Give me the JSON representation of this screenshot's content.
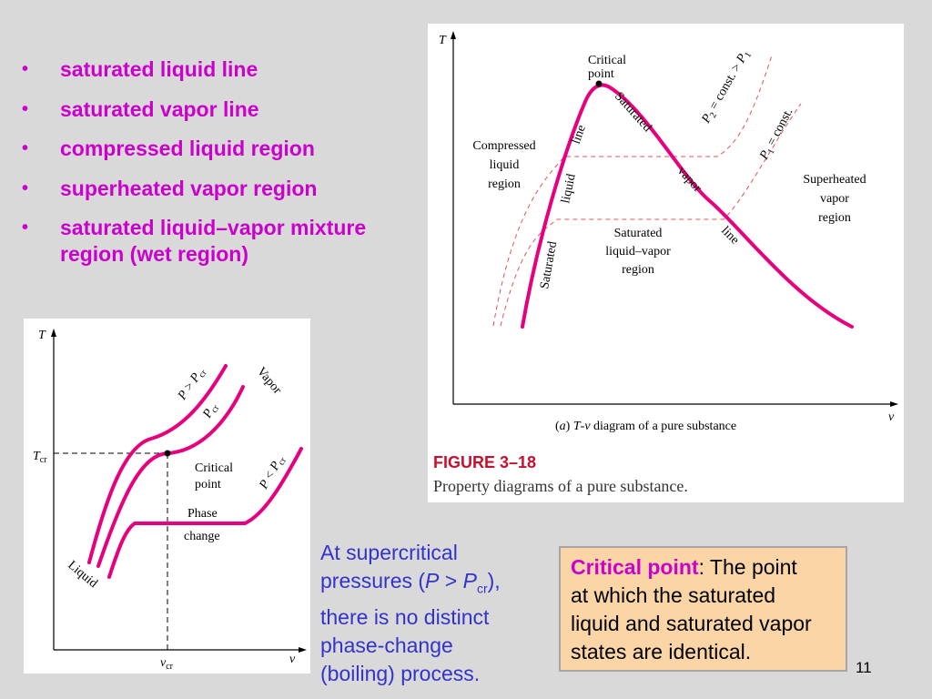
{
  "bullets": [
    {
      "text": "saturated liquid line"
    },
    {
      "text": "saturated vapor line"
    },
    {
      "text": "compressed liquid region"
    },
    {
      "text": "superheated vapor region"
    },
    {
      "text": "saturated liquid–vapor mixture region (wet region)"
    }
  ],
  "bullet_marker": "•",
  "figure_right": {
    "axis_t": "T",
    "axis_v": "v",
    "critical_point": [
      "Critical",
      "point"
    ],
    "p2_label": [
      "P",
      "2",
      " = const. > ",
      "P",
      "1"
    ],
    "p1_label": [
      "P",
      "1",
      " = const."
    ],
    "compressed_region": [
      "Compressed",
      "liquid",
      "region"
    ],
    "superheated_region": [
      "Superheated",
      "vapor",
      "region"
    ],
    "saturated_region": [
      "Saturated",
      "liquid–vapor",
      "region"
    ],
    "sat_liquid_line": [
      "Saturated",
      "liquid",
      "line"
    ],
    "sat_vapor_line": [
      "Saturated",
      "vapor",
      "line"
    ],
    "caption_a": [
      "(",
      "a",
      ") ",
      "T",
      "-",
      "v",
      " diagram of a pure substance"
    ],
    "figure_number": "FIGURE 3–18",
    "figure_caption": "Property diagrams of a pure substance."
  },
  "figure_left": {
    "axis_t": "T",
    "axis_v": "v",
    "t_cr": [
      "T",
      "cr"
    ],
    "v_cr": [
      "v",
      "cr"
    ],
    "critical_point": [
      "Critical",
      "point"
    ],
    "phase_change": [
      "Phase",
      "change"
    ],
    "liquid": "Liquid",
    "vapor": "Vapor",
    "p_gt_pcr": [
      "P",
      " > ",
      "P",
      "cr"
    ],
    "p_cr": [
      "P",
      "cr"
    ],
    "p_lt_pcr": [
      "P",
      " < ",
      "P",
      "cr"
    ]
  },
  "supercritical_note": {
    "line1": "At supercritical",
    "line2_pre": "pressures (",
    "line2_p": "P",
    "line2_gt": " > ",
    "line2_p2": "P",
    "line2_sub": "cr",
    "line2_post": "),",
    "line3": "there is no distinct",
    "line4": "phase-change",
    "line5": "(boiling) process."
  },
  "critical_point_box": {
    "label": "Critical point",
    "line1_rest": ": The point",
    "line2": "at which the saturated",
    "line3": "liquid and saturated vapor",
    "line4": "states are identical."
  },
  "page_number": "11",
  "colors": {
    "background": "#d9d9d9",
    "accent_magenta": "#cc00cc",
    "curve_magenta": "#e6007e",
    "figure_red": "#c8102e",
    "note_blue": "#3333cc",
    "box_fill": "#fbd5a5"
  }
}
